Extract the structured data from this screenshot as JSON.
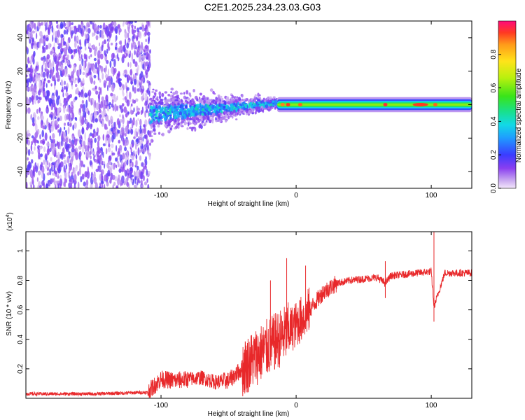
{
  "title": "C2E1.2025.234.23.03.G03",
  "chart_data": [
    {
      "type": "heatmap",
      "xlabel": "Height of straight line (km)",
      "ylabel": "Frequency (Hz)",
      "xlim": [
        -200,
        130
      ],
      "ylim": [
        -50,
        50
      ],
      "xticks": [
        -100,
        0,
        100
      ],
      "yticks": [
        -40,
        -20,
        0,
        20,
        40
      ],
      "colorbar": {
        "label": "Normalized spectral amplitude",
        "range": [
          0,
          1
        ],
        "ticks": [
          "0.0",
          "0.2",
          "0.4",
          "0.6",
          "0.8"
        ],
        "tick_values": [
          0.0,
          0.2,
          0.4,
          0.6,
          0.8
        ]
      },
      "regions": [
        {
          "x": [
            -200,
            -108
          ],
          "freq": [
            -50,
            50
          ],
          "amplitude": "low",
          "description": "broadband noise"
        },
        {
          "x": [
            -108,
            -14
          ],
          "freq": [
            -15,
            10
          ],
          "amplitude": "medium",
          "description": "scattered band converging to 0 Hz"
        },
        {
          "x": [
            -14,
            130
          ],
          "freq": [
            -4,
            4
          ],
          "amplitude": "high",
          "description": "narrow band near 0 Hz"
        }
      ]
    },
    {
      "type": "line",
      "xlabel": "Height of straight line (km)",
      "ylabel": "SNR (10 * v/v)",
      "y_multiplier": "(x10",
      "y_multiplier_exp": "4",
      "y_multiplier_close": ")",
      "xlim": [
        -200,
        130
      ],
      "ylim": [
        0,
        1.13
      ],
      "xticks": [
        -100,
        0,
        100
      ],
      "yticks": [
        "0.2",
        "0.4",
        "0.6",
        "0.8",
        "1"
      ],
      "ytick_values": [
        0.2,
        0.4,
        0.6,
        0.8,
        1.0
      ],
      "color": "#e8282a",
      "series": [
        {
          "name": "SNR",
          "x": [
            -200,
            -150,
            -110,
            -100,
            -90,
            -80,
            -70,
            -60,
            -50,
            -40,
            -30,
            -20,
            -10,
            0,
            10,
            20,
            30,
            40,
            50,
            60,
            66,
            70,
            80,
            90,
            100,
            102,
            110,
            120,
            130
          ],
          "y": [
            0.03,
            0.03,
            0.04,
            0.13,
            0.12,
            0.13,
            0.14,
            0.11,
            0.12,
            0.2,
            0.28,
            0.35,
            0.42,
            0.5,
            0.6,
            0.72,
            0.78,
            0.8,
            0.81,
            0.82,
            0.78,
            0.83,
            0.84,
            0.85,
            0.86,
            0.62,
            0.85,
            0.85,
            0.85
          ]
        }
      ],
      "spikes": [
        {
          "x": -19,
          "y": 0.8
        },
        {
          "x": -7,
          "y": 0.95
        },
        {
          "x": 7,
          "y": 0.9
        },
        {
          "x": 66,
          "y": 0.93
        },
        {
          "x": 102,
          "y": 1.13
        }
      ]
    }
  ]
}
